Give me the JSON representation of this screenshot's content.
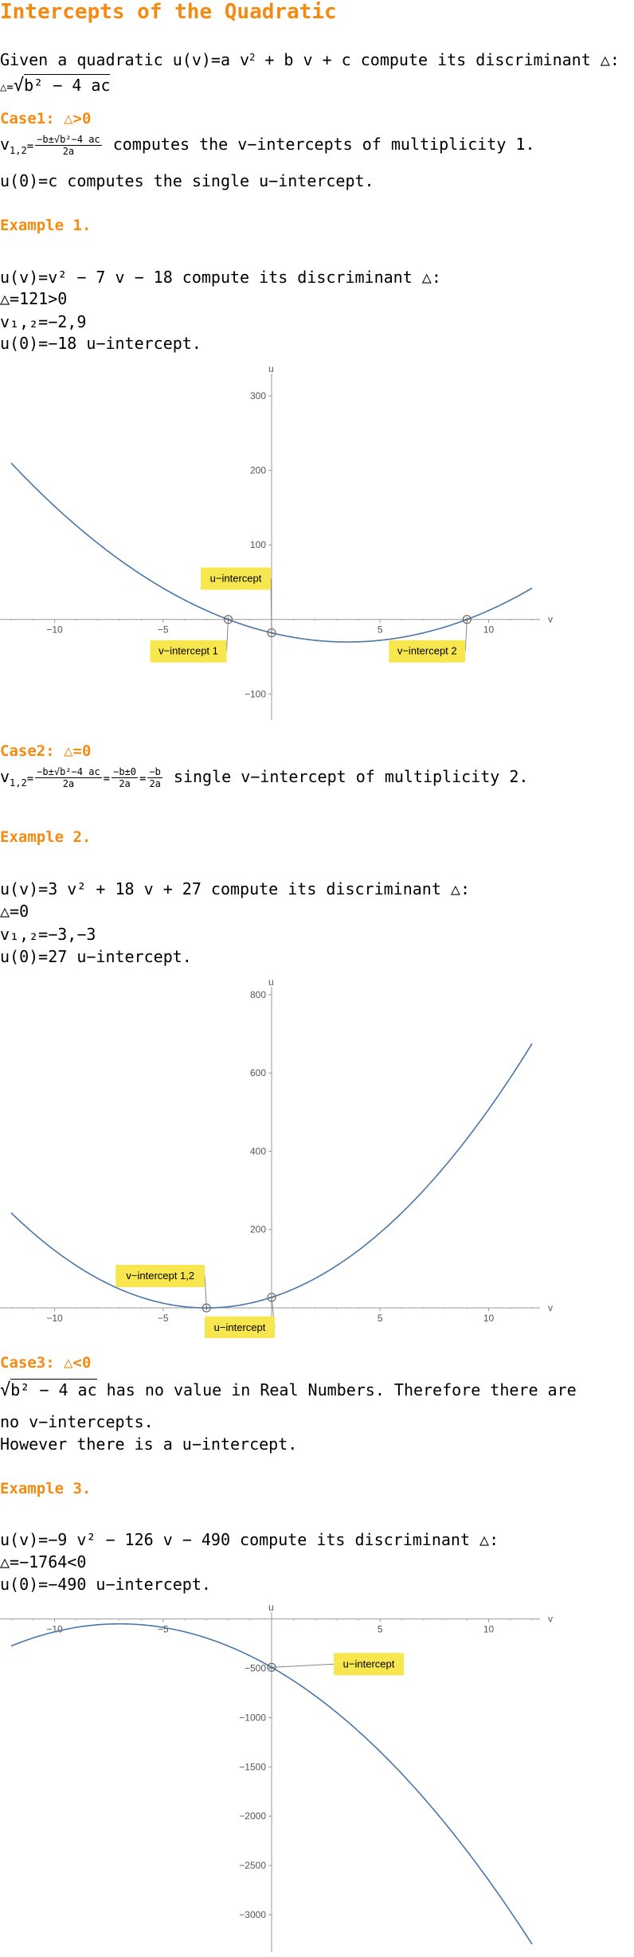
{
  "title": "Intercepts of the Quadratic",
  "intro": {
    "line1_pre": "Given a quadratic u(v)=a v",
    "line1_sup": "2",
    "line1_post": " + b v + c compute its discriminant △:",
    "disc_pre": "△=",
    "disc_body": "b² − 4 ac"
  },
  "case1": {
    "heading": "Case1: △>0",
    "v12_label": "v",
    "v12_sub": "1,2",
    "frac_num": "−b±√b²−4 ac",
    "frac_den": "2a",
    "v12_text": " computes the v−intercepts of multiplicity 1.",
    "u0_text": "u(0)=c computes the single u−intercept."
  },
  "example1": {
    "heading": "Example 1.",
    "lines": [
      "u(v)=v² − 7 v − 18 compute its discriminant △:",
      "△=121>0",
      "v₁,₂=−2,9",
      "u(0)=−18 u−intercept."
    ]
  },
  "case2": {
    "heading": "Case2: △=0",
    "v12_label": "v",
    "v12_sub": "1,2",
    "frac1_num": "−b±√b²−4 ac",
    "frac1_den": "2a",
    "frac2_num": "−b±0",
    "frac2_den": "2a",
    "frac3_num": "−b",
    "frac3_den": "2a",
    "text": " single v−intercept of multiplicity 2."
  },
  "example2": {
    "heading": "Example 2.",
    "lines": [
      "u(v)=3 v² + 18 v + 27 compute its discriminant △:",
      "△=0",
      "v₁,₂=−3,−3",
      "u(0)=27 u−intercept."
    ]
  },
  "case3": {
    "heading": "Case3: △<0",
    "rad_body": "b² − 4 ac",
    "line1_post": " has no value in Real Numbers. Therefore there are",
    "line2": "no v−intercepts.",
    "line3": "However there is a u−intercept."
  },
  "example3": {
    "heading": "Example 3.",
    "lines": [
      "u(v)=−9 v² − 126 v − 490 compute its discriminant △:",
      "△=−1764<0",
      "u(0)=−490 u−intercept."
    ]
  },
  "chart_data": [
    {
      "type": "line",
      "function": "u(v)=v^2-7v-18",
      "xlabel": "v",
      "ylabel": "u",
      "xlim": [
        -12,
        12
      ],
      "ylim": [
        -135,
        330
      ],
      "xticks": [
        -10,
        -5,
        5,
        10
      ],
      "yticks": [
        -100,
        100,
        200,
        300
      ],
      "points": [
        {
          "x": -2,
          "y": 0
        },
        {
          "x": 9,
          "y": 0
        },
        {
          "x": 0,
          "y": -18
        }
      ],
      "labels": [
        "v−intercept 1",
        "v−intercept 2",
        "u−intercept"
      ],
      "line_color": "#4a76a8"
    },
    {
      "type": "line",
      "function": "u(v)=3v^2+18v+27",
      "xlabel": "v",
      "ylabel": "u",
      "xlim": [
        -12,
        12
      ],
      "ylim": [
        -65,
        820
      ],
      "xticks": [
        -10,
        -5,
        5,
        10
      ],
      "yticks": [
        200,
        400,
        600,
        800
      ],
      "points": [
        {
          "x": -3,
          "y": 0
        },
        {
          "x": 0,
          "y": 27
        }
      ],
      "labels": [
        "v−intercept 1,2",
        "u−intercept"
      ],
      "line_color": "#4a76a8"
    },
    {
      "type": "line",
      "function": "u(v)=-9v^2-126v-490",
      "xlabel": "v",
      "ylabel": "u",
      "xlim": [
        -12,
        12
      ],
      "ylim": [
        -3380,
        70
      ],
      "xticks": [
        -10,
        -5,
        5,
        10
      ],
      "yticks": [
        -500,
        -1000,
        -1500,
        -2000,
        -2500,
        -3000
      ],
      "points": [
        {
          "x": 0,
          "y": -490
        }
      ],
      "labels": [
        "u−intercept"
      ],
      "line_color": "#4a76a8"
    }
  ]
}
